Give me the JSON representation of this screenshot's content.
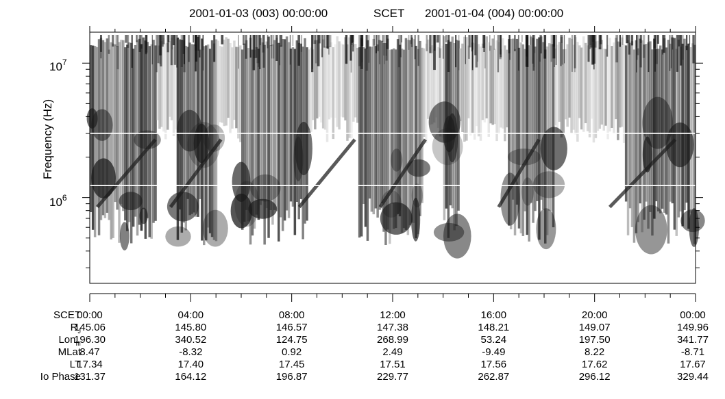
{
  "header": {
    "left_date": "2001-01-03 (003) 00:00:00",
    "center": "SCET",
    "right_date": "2001-01-04 (004) 00:00:00"
  },
  "chart_data": {
    "type": "heatmap",
    "ylabel": "Frequency (Hz)",
    "yscale": "log",
    "ylim": [
      230000,
      17000000
    ],
    "y_tick_labels": [
      {
        "base": "10",
        "exp": "7",
        "value": 10000000
      },
      {
        "base": "10",
        "exp": "6",
        "value": 1000000
      }
    ],
    "x_axis": "SCET",
    "xlim_hours": [
      0,
      24
    ],
    "colormap": "grayscale (white = low, black = high intensity)",
    "ephemeris": {
      "SCET": [
        "00:00",
        "04:00",
        "08:00",
        "12:00",
        "16:00",
        "20:00",
        "00:00"
      ],
      "R_J": [
        "145.06",
        "145.80",
        "146.57",
        "147.38",
        "148.21",
        "149.07",
        "149.96"
      ],
      "Lon_III": [
        "196.30",
        "340.52",
        "124.75",
        "268.99",
        "53.24",
        "197.50",
        "341.77"
      ],
      "MLat": [
        "8.47",
        "-8.32",
        "0.92",
        "2.49",
        "-9.49",
        "8.22",
        "-8.71"
      ],
      "LT": [
        "17.34",
        "17.40",
        "17.45",
        "17.51",
        "17.56",
        "17.62",
        "17.67"
      ],
      "Io_Phase": [
        "131.37",
        "164.12",
        "196.87",
        "229.77",
        "262.87",
        "296.12",
        "329.44"
      ]
    },
    "row_labels": {
      "scet": "SCET",
      "rj_main": "R",
      "rj_sub": "J",
      "lon_main": "Lon",
      "lon_sub": "III",
      "mlat": "MLat",
      "lt": "LT",
      "io": "Io Phase"
    }
  }
}
